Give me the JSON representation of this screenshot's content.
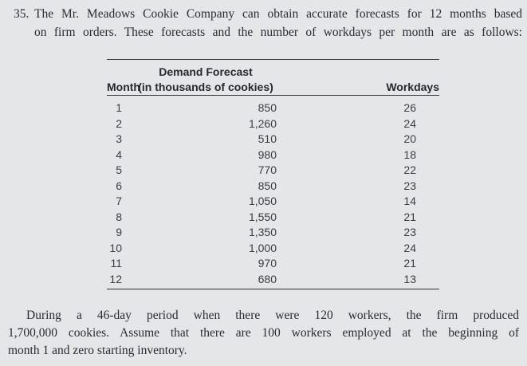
{
  "problem": {
    "number": "35.",
    "intro_lines": [
      "The Mr. Meadows Cookie Company can obtain accurate forecasts for 12 months based",
      "on firm orders. These forecasts and the number of workdays per month are as follows:"
    ]
  },
  "table": {
    "headers": {
      "month": "Month",
      "demand_line1": "Demand Forecast",
      "demand_line2": "(in thousands of cookies)",
      "workdays": "Workdays"
    },
    "rows": [
      {
        "month": "1",
        "demand": "850",
        "workdays": "26"
      },
      {
        "month": "2",
        "demand": "1,260",
        "workdays": "24"
      },
      {
        "month": "3",
        "demand": "510",
        "workdays": "20"
      },
      {
        "month": "4",
        "demand": "980",
        "workdays": "18"
      },
      {
        "month": "5",
        "demand": "770",
        "workdays": "22"
      },
      {
        "month": "6",
        "demand": "850",
        "workdays": "23"
      },
      {
        "month": "7",
        "demand": "1,050",
        "workdays": "14"
      },
      {
        "month": "8",
        "demand": "1,550",
        "workdays": "21"
      },
      {
        "month": "9",
        "demand": "1,350",
        "workdays": "23"
      },
      {
        "month": "10",
        "demand": "1,000",
        "workdays": "24"
      },
      {
        "month": "11",
        "demand": "970",
        "workdays": "21"
      },
      {
        "month": "12",
        "demand": "680",
        "workdays": "13"
      }
    ]
  },
  "closing": {
    "lines": [
      "During a 46-day period when there were 120 workers, the firm produced",
      "1,700,000 cookies. Assume that there are 100 workers employed at the beginning of",
      "month 1 and zero starting inventory."
    ]
  },
  "colors": {
    "background": "#e5e6e8",
    "body_text": "#2b2b33",
    "table_text": "#3c3d43",
    "table_header_text": "#28282e",
    "rule": "#303135"
  }
}
